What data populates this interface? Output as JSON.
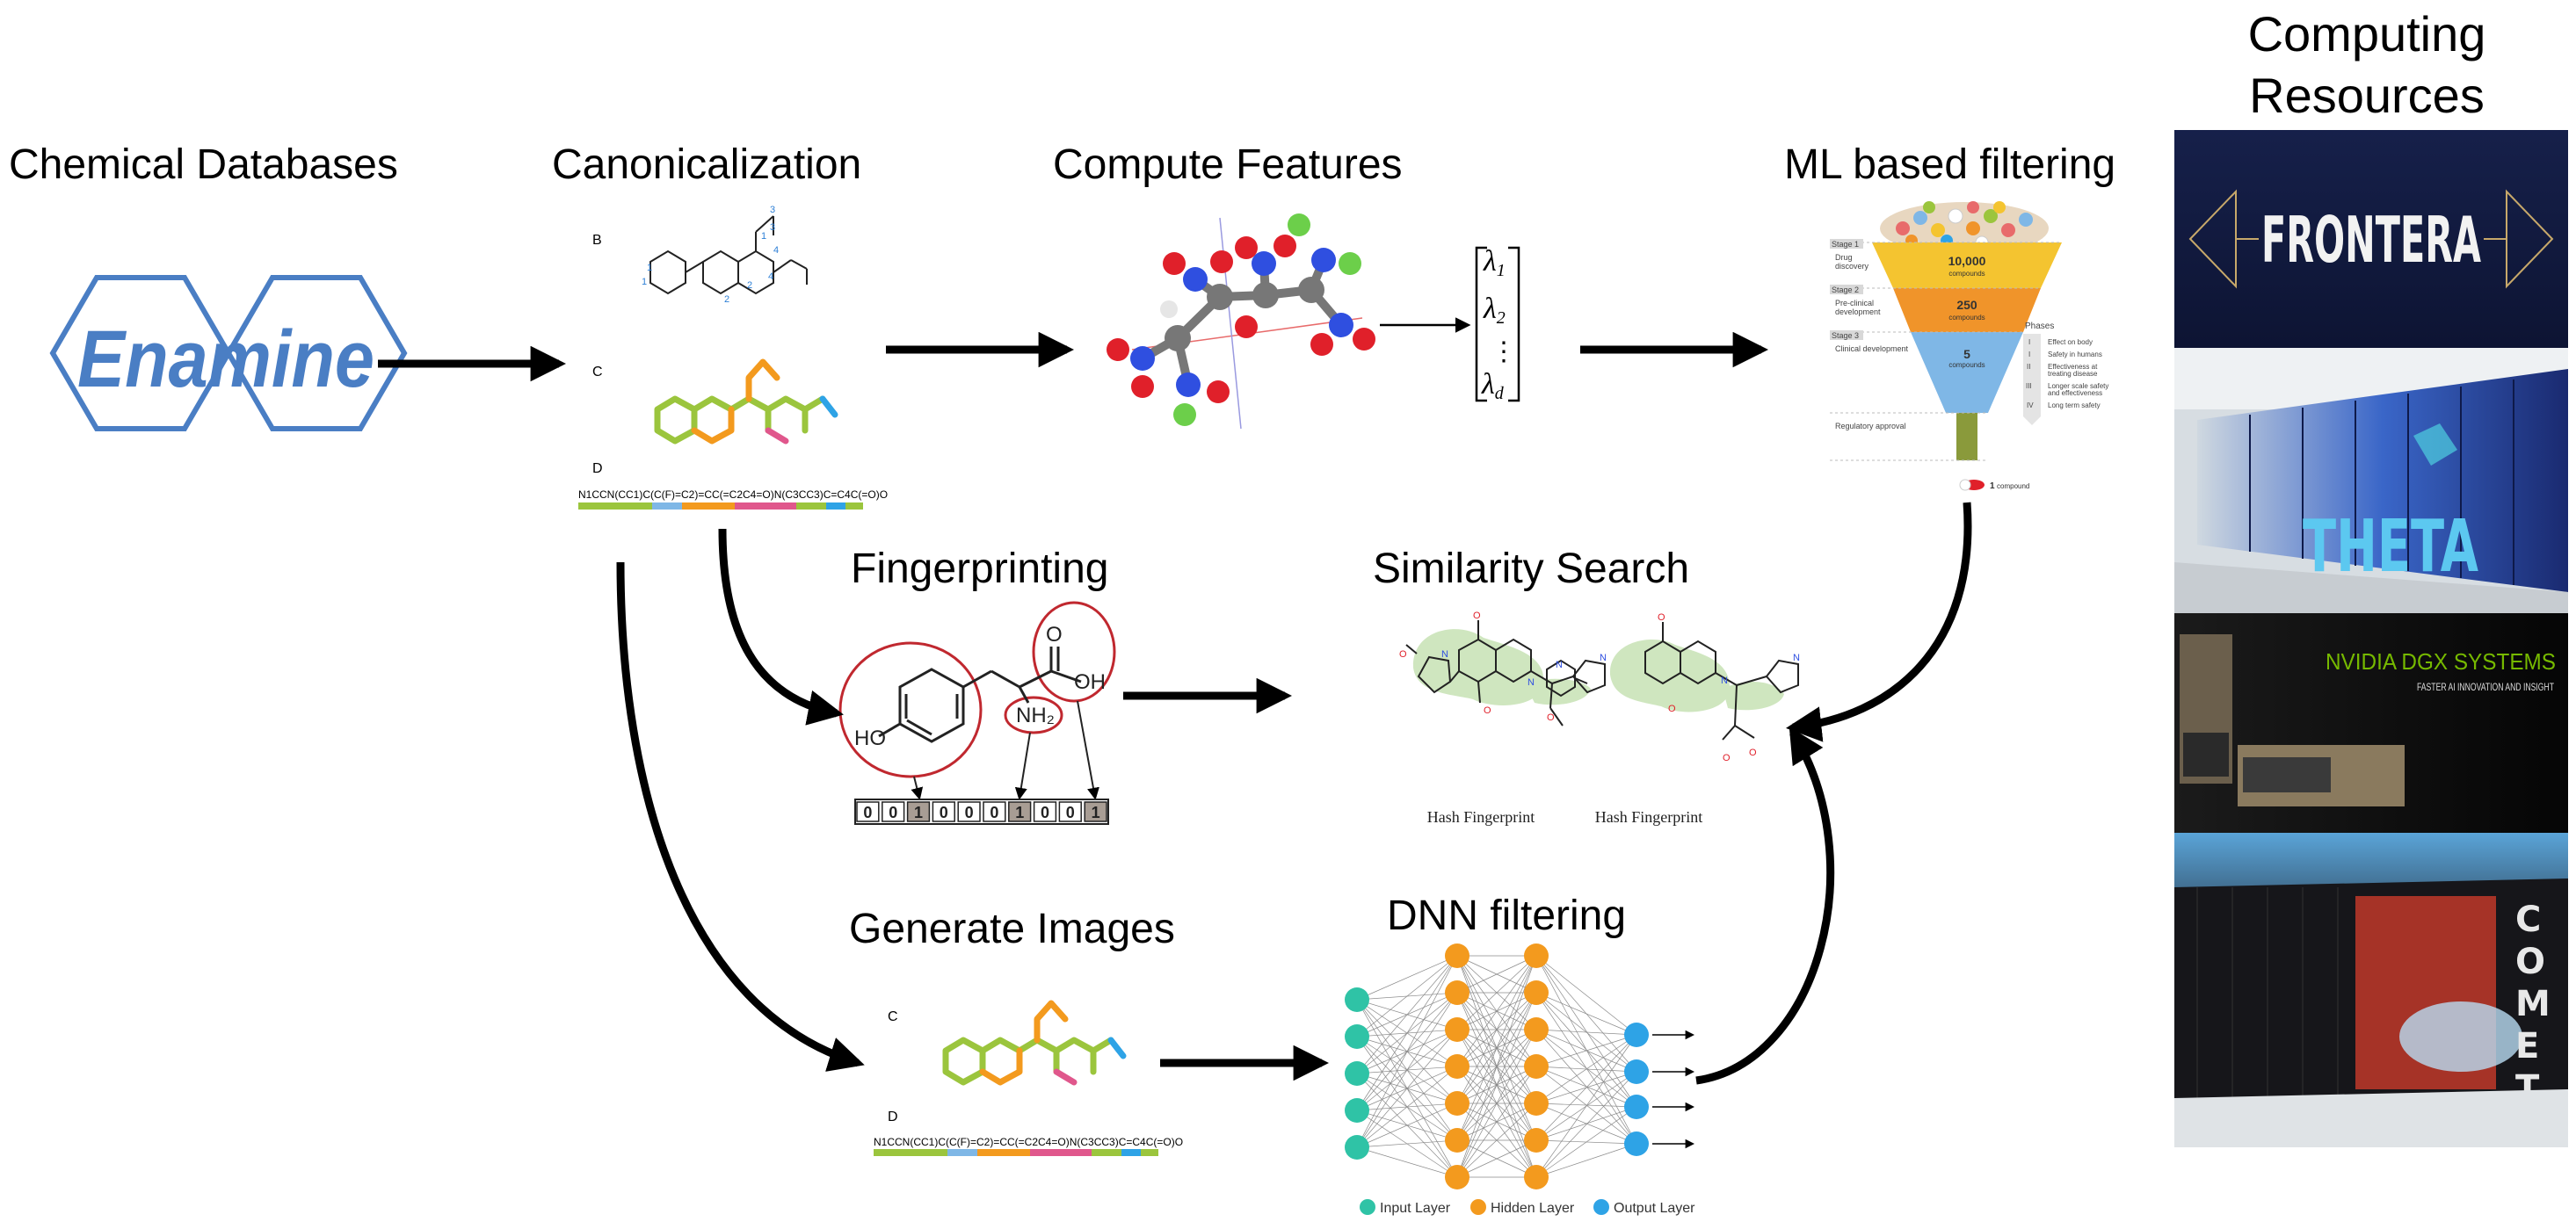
{
  "titles": {
    "chemical_databases": "Chemical Databases",
    "canonicalization": "Canonicalization",
    "compute_features": "Compute Features",
    "ml_filtering": "ML based filtering",
    "computing_line1": "Computing",
    "computing_line2": "Resources",
    "fingerprinting": "Fingerprinting",
    "similarity_search": "Similarity Search",
    "generate_images": "Generate Images",
    "dnn_filtering": "DNN filtering"
  },
  "enamine_logo": "Enamine",
  "canonicalization_panel": {
    "label_b": "B",
    "label_c": "C",
    "label_d": "D",
    "smiles": "N1CCN(CC1)C(C(F)=C2)=CC(=C2C4=O)N(C3CC3)C=C4C(=O)O"
  },
  "features": {
    "lambda1": "λ",
    "sub1": "1",
    "lambda2": "λ",
    "sub2": "2",
    "dots": "⋮",
    "lambdad": "λ",
    "subd": "d"
  },
  "fingerprint": {
    "hydroxyl": "HO",
    "amine": "NH₂",
    "carboxyl_o": "O",
    "carboxyl_oh": "OH",
    "bits": [
      "0",
      "0",
      "1",
      "0",
      "0",
      "0",
      "1",
      "0",
      "0",
      "1"
    ]
  },
  "similarity": {
    "caption_left": "Hash Fingerprint",
    "caption_right": "Hash Fingerprint"
  },
  "generate_panel": {
    "label_c": "C",
    "label_d": "D",
    "smiles": "N1CCN(CC1)C(C(F)=C2)=CC(=C2C4=O)N(C3CC3)C=C4C(=O)O"
  },
  "dnn_legend": {
    "input": "Input Layer",
    "hidden": "Hidden Layer",
    "output": "Output Layer"
  },
  "funnel": {
    "stage1": "Stage 1",
    "stage1_desc_1": "Drug",
    "stage1_desc_2": "discovery",
    "stage2": "Stage 2",
    "stage2_desc_1": "Pre-clinical",
    "stage2_desc_2": "development",
    "stage3": "Stage 3",
    "stage3_desc": "Clinical development",
    "regulatory": "Regulatory approval",
    "count1": "10,000",
    "count1_unit": "compounds",
    "count2": "250",
    "count2_unit": "compounds",
    "count3": "5",
    "count3_unit": "compounds",
    "final_count": "1",
    "final_unit": "compound",
    "phases_title": "Phases",
    "phase_num_1": "I",
    "phase_text_1": "Effect on body",
    "phase_num_2": "I",
    "phase_text_2": "Safety in humans",
    "phase_num_3": "II",
    "phase_text_3": "Effectiveness at",
    "phase_text_3b": "treating disease",
    "phase_num_4": "III",
    "phase_text_4": "Longer scale safety",
    "phase_text_4b": "and effectiveness",
    "phase_num_5": "IV",
    "phase_text_5": "Long term safety"
  },
  "resources": {
    "frontera": "FRONTERA",
    "theta": "THETA",
    "nvidia_line1": "NVIDIA DGX SYSTEMS",
    "nvidia_line2": "FASTER AI INNOVATION AND INSIGHT"
  },
  "colors": {
    "enamine_blue": "#4a7ec4",
    "arrow": "#000000",
    "input_node": "#2fc3a6",
    "hidden_node": "#f39a1e",
    "output_node": "#2ea3e6",
    "molecule_green": "#9bc53d",
    "highlight_red": "#c0282f",
    "funnel_yellow": "#f4c430",
    "funnel_orange": "#f0942a",
    "funnel_blue": "#7fb7e6",
    "funnel_green": "#8a9a3b"
  }
}
